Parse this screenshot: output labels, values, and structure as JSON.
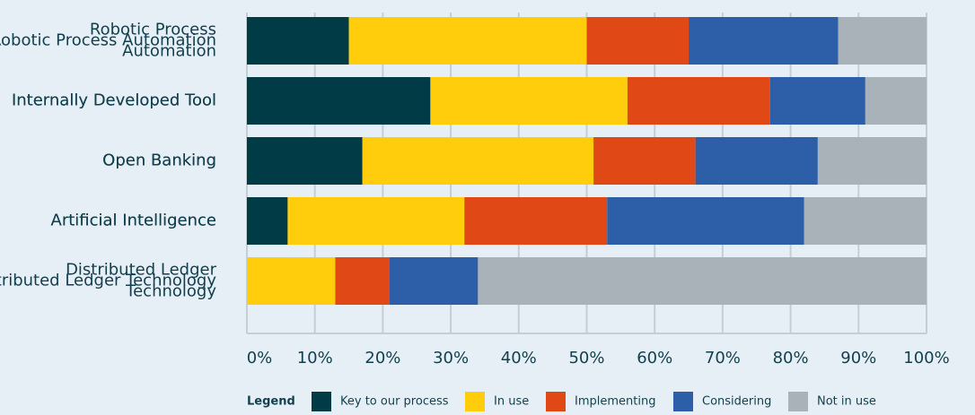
{
  "chart_data": {
    "type": "stacked-bar-horizontal",
    "categories": [
      "Robotic Process\nAutomation",
      "Internally Developed Tool",
      "Open Banking",
      "Artificial Intelligence",
      "Distributed Ledger\nTechnology"
    ],
    "series": [
      {
        "name": "Key to our process",
        "color": "#003b46",
        "values": [
          15,
          27,
          17,
          6,
          0
        ]
      },
      {
        "name": "In use",
        "color": "#ffcd0b",
        "values": [
          35,
          29,
          34,
          26,
          13
        ]
      },
      {
        "name": "Implementing",
        "color": "#e04916",
        "values": [
          15,
          21,
          15,
          21,
          8
        ]
      },
      {
        "name": "Considering",
        "color": "#2d5fa9",
        "values": [
          22,
          14,
          18,
          29,
          13
        ]
      },
      {
        "name": "Not in use",
        "color": "#aab2b9",
        "values": [
          13,
          9,
          16,
          18,
          66
        ]
      }
    ],
    "xlim": [
      0,
      100
    ],
    "xticks": [
      {
        "value": 0,
        "label": "0%"
      },
      {
        "value": 10,
        "label": "10%"
      },
      {
        "value": 20,
        "label": "20%"
      },
      {
        "value": 30,
        "label": "30%"
      },
      {
        "value": 40,
        "label": "40%"
      },
      {
        "value": 50,
        "label": "50%"
      },
      {
        "value": 60,
        "label": "60%"
      },
      {
        "value": 70,
        "label": "70%"
      },
      {
        "value": 80,
        "label": "80%"
      },
      {
        "value": 90,
        "label": "90%"
      },
      {
        "value": 100,
        "label": "100%"
      }
    ],
    "grid": true,
    "legend_title": "Legend"
  }
}
